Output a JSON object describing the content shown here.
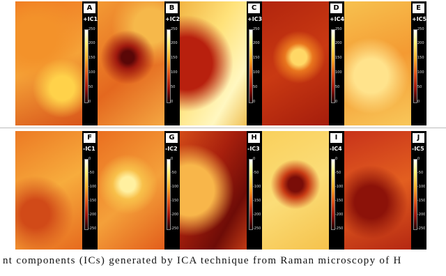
{
  "panels": [
    {
      "letter": "A",
      "label": "+IC1"
    },
    {
      "letter": "B",
      "label": "+IC2"
    },
    {
      "letter": "C",
      "label": "+IC3"
    },
    {
      "letter": "D",
      "label": "+IC4"
    },
    {
      "letter": "E",
      "label": "+IC5"
    },
    {
      "letter": "F",
      "label": "-IC1"
    },
    {
      "letter": "G",
      "label": "-IC2"
    },
    {
      "letter": "H",
      "label": "-IC3"
    },
    {
      "letter": "I",
      "label": "-IC4"
    },
    {
      "letter": "J",
      "label": "-IC5"
    }
  ],
  "colorbar_ticks": {
    "positive": [
      250,
      200,
      150,
      100,
      50,
      0
    ],
    "negative": [
      0,
      -50,
      -100,
      -150,
      -200,
      -250
    ]
  },
  "caption": "nt components (ICs) generated by ICA technique from Raman microscopy of H"
}
